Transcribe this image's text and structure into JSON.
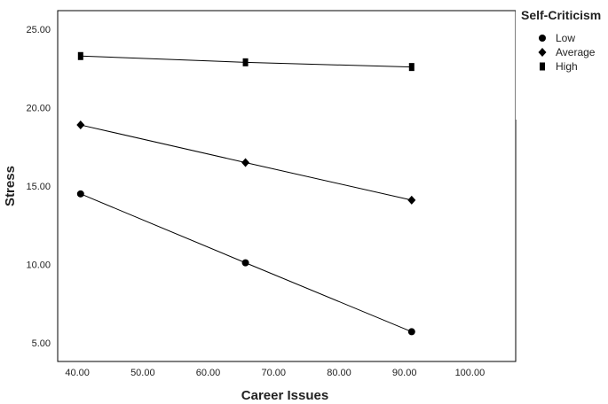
{
  "chart_data": {
    "type": "line",
    "xlabel": "Career Issues",
    "ylabel": "Stress",
    "xlim": [
      37,
      107
    ],
    "ylim": [
      3.8,
      26.2
    ],
    "xticks": [
      "40.00",
      "50.00",
      "60.00",
      "70.00",
      "80.00",
      "90.00",
      "100.00"
    ],
    "yticks": [
      "5.00",
      "10.00",
      "15.00",
      "20.00",
      "25.00"
    ],
    "grid": false,
    "legend": {
      "title": "Self-Criticism",
      "placement": "right"
    },
    "x": [
      40.5,
      65.7,
      91.1
    ],
    "series": [
      {
        "name": "Low",
        "marker": "circle",
        "values": [
          14.5,
          10.1,
          5.7
        ]
      },
      {
        "name": "Average",
        "marker": "diamond",
        "values": [
          18.9,
          16.5,
          14.1
        ]
      },
      {
        "name": "High",
        "marker": "square",
        "values": [
          23.3,
          22.9,
          22.6
        ]
      }
    ]
  }
}
